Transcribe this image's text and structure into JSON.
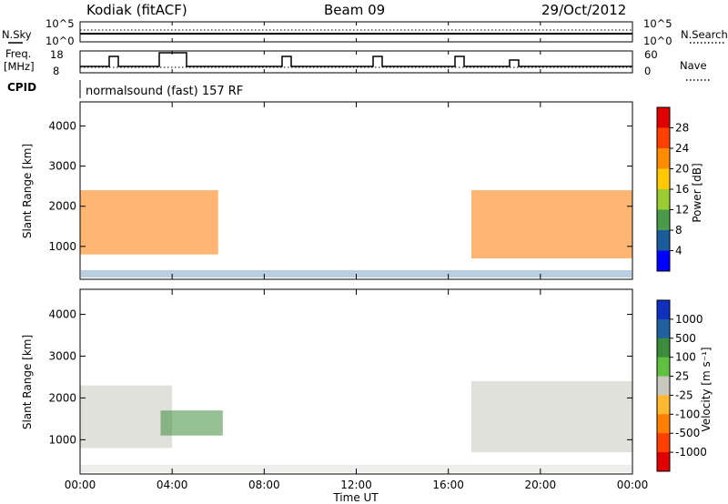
{
  "header": {
    "station": "Kodiak (fitACF)",
    "beam": "Beam 09",
    "date": "29/Oct/2012"
  },
  "noise_panel": {
    "left_label": "N.Sky",
    "right_label": "N.Search",
    "left_ticks": [
      "10^5",
      "10^0"
    ],
    "right_ticks": [
      "10^5",
      "10^0"
    ]
  },
  "freq_panel": {
    "left_label_1": "Freq.",
    "left_label_2": "[MHz]",
    "right_label": "Nave",
    "left_ticks": [
      "18",
      "8"
    ],
    "right_ticks": [
      "60",
      "0"
    ]
  },
  "cpid": {
    "label": "CPID",
    "value": "normalsound (fast) 157 RF"
  },
  "chart_data": [
    {
      "type": "heatmap",
      "panel": "power",
      "ylabel": "Slant Range [km]",
      "y_ticks": [
        1000,
        2000,
        3000,
        4000
      ],
      "ylim": [
        180,
        4600
      ],
      "x_ticks": [
        "00:00",
        "04:00",
        "08:00",
        "12:00",
        "16:00",
        "20:00",
        "00:00"
      ],
      "xlim_hours": [
        0,
        24
      ],
      "colorbar": {
        "label": "Power [dB]",
        "ticks": [
          28,
          24,
          20,
          16,
          12,
          8,
          4
        ],
        "colors": [
          "#e00000",
          "#ff4000",
          "#ff8c00",
          "#ffc800",
          "#9acd32",
          "#4a9a4a",
          "#1a5c9a",
          "#0000ff"
        ]
      },
      "echo_regions": [
        {
          "t_start": 0.0,
          "t_end": 6.0,
          "r_min": 800,
          "r_max": 2400,
          "level": "high"
        },
        {
          "t_start": 17.0,
          "t_end": 24.0,
          "r_min": 700,
          "r_max": 2400,
          "level": "high"
        }
      ]
    },
    {
      "type": "heatmap",
      "panel": "velocity",
      "ylabel": "Slant Range [km]",
      "y_ticks": [
        1000,
        2000,
        3000,
        4000
      ],
      "ylim": [
        180,
        4600
      ],
      "x_ticks": [
        "00:00",
        "04:00",
        "08:00",
        "12:00",
        "16:00",
        "20:00",
        "00:00"
      ],
      "xlim_hours": [
        0,
        24
      ],
      "xlabel": "Time UT",
      "colorbar": {
        "label": "Velocity [m s⁻¹]",
        "ticks": [
          1000,
          500,
          100,
          25,
          -25,
          -100,
          -500,
          -1000
        ],
        "colors": [
          "#1030c0",
          "#2060a0",
          "#3c8c3c",
          "#60c040",
          "#c8c8c0",
          "#ffb830",
          "#ff8000",
          "#ff4000",
          "#e00000"
        ]
      },
      "echo_regions": [
        {
          "t_start": 0.0,
          "t_end": 4.0,
          "r_min": 800,
          "r_max": 2300,
          "level": "ground"
        },
        {
          "t_start": 3.5,
          "t_end": 6.2,
          "r_min": 1100,
          "r_max": 1700,
          "level": "positive"
        },
        {
          "t_start": 17.0,
          "t_end": 24.0,
          "r_min": 700,
          "r_max": 2400,
          "level": "ground"
        }
      ]
    }
  ]
}
